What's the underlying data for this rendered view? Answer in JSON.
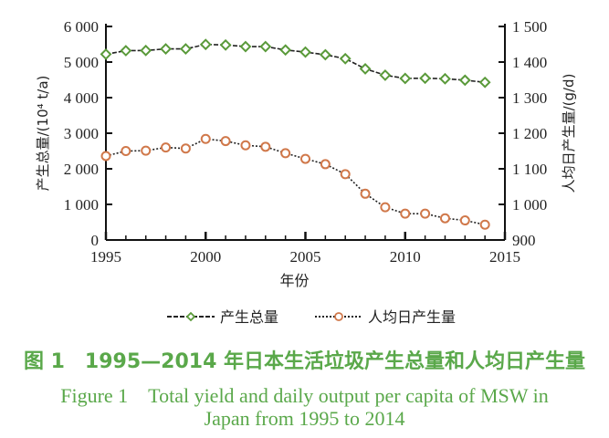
{
  "chart_data": {
    "type": "line",
    "x": [
      1995,
      1996,
      1997,
      1998,
      1999,
      2000,
      2001,
      2002,
      2003,
      2004,
      2005,
      2006,
      2007,
      2008,
      2009,
      2010,
      2011,
      2012,
      2013,
      2014
    ],
    "xlabel": "年份",
    "xlim": [
      1995,
      2015
    ],
    "xticks": [
      "1995",
      "2000",
      "2005",
      "2010",
      "2015"
    ],
    "ylabel_left": "产生总量/(10⁴ t/a)",
    "ylim_left": [
      0,
      6000
    ],
    "yticks_left": [
      "0",
      "1 000",
      "2 000",
      "3 000",
      "4 000",
      "5 000",
      "6 000"
    ],
    "ylabel_right": "人均日产生量/(g/d)",
    "ylim_right": [
      900,
      1500
    ],
    "yticks_right": [
      "900",
      "1 000",
      "1 100",
      "1 200",
      "1 300",
      "1 400",
      "1 500"
    ],
    "grid": false,
    "legend_position": "bottom",
    "series": [
      {
        "name": "产生总量",
        "axis": "left",
        "marker": "diamond",
        "color": "#5a9a3a",
        "line": "dashed",
        "values": [
          5220,
          5320,
          5325,
          5370,
          5370,
          5495,
          5480,
          5435,
          5435,
          5340,
          5280,
          5205,
          5095,
          4810,
          4630,
          4540,
          4545,
          4530,
          4490,
          4430
        ]
      },
      {
        "name": "人均日产生量",
        "axis": "right",
        "marker": "circle",
        "color": "#d0784a",
        "line": "dotted",
        "values": [
          1136,
          1150,
          1151,
          1160,
          1157,
          1184,
          1178,
          1166,
          1162,
          1144,
          1128,
          1113,
          1085,
          1030,
          992,
          974,
          974,
          961,
          955,
          943
        ]
      }
    ]
  },
  "caption": {
    "cn": "图 1　1995—2014 年日本生活垃圾产生总量和人均日产生量",
    "en_line1": "Figure 1　Total yield and daily output per capita  of MSW in",
    "en_line2": "Japan from 1995 to 2014"
  }
}
